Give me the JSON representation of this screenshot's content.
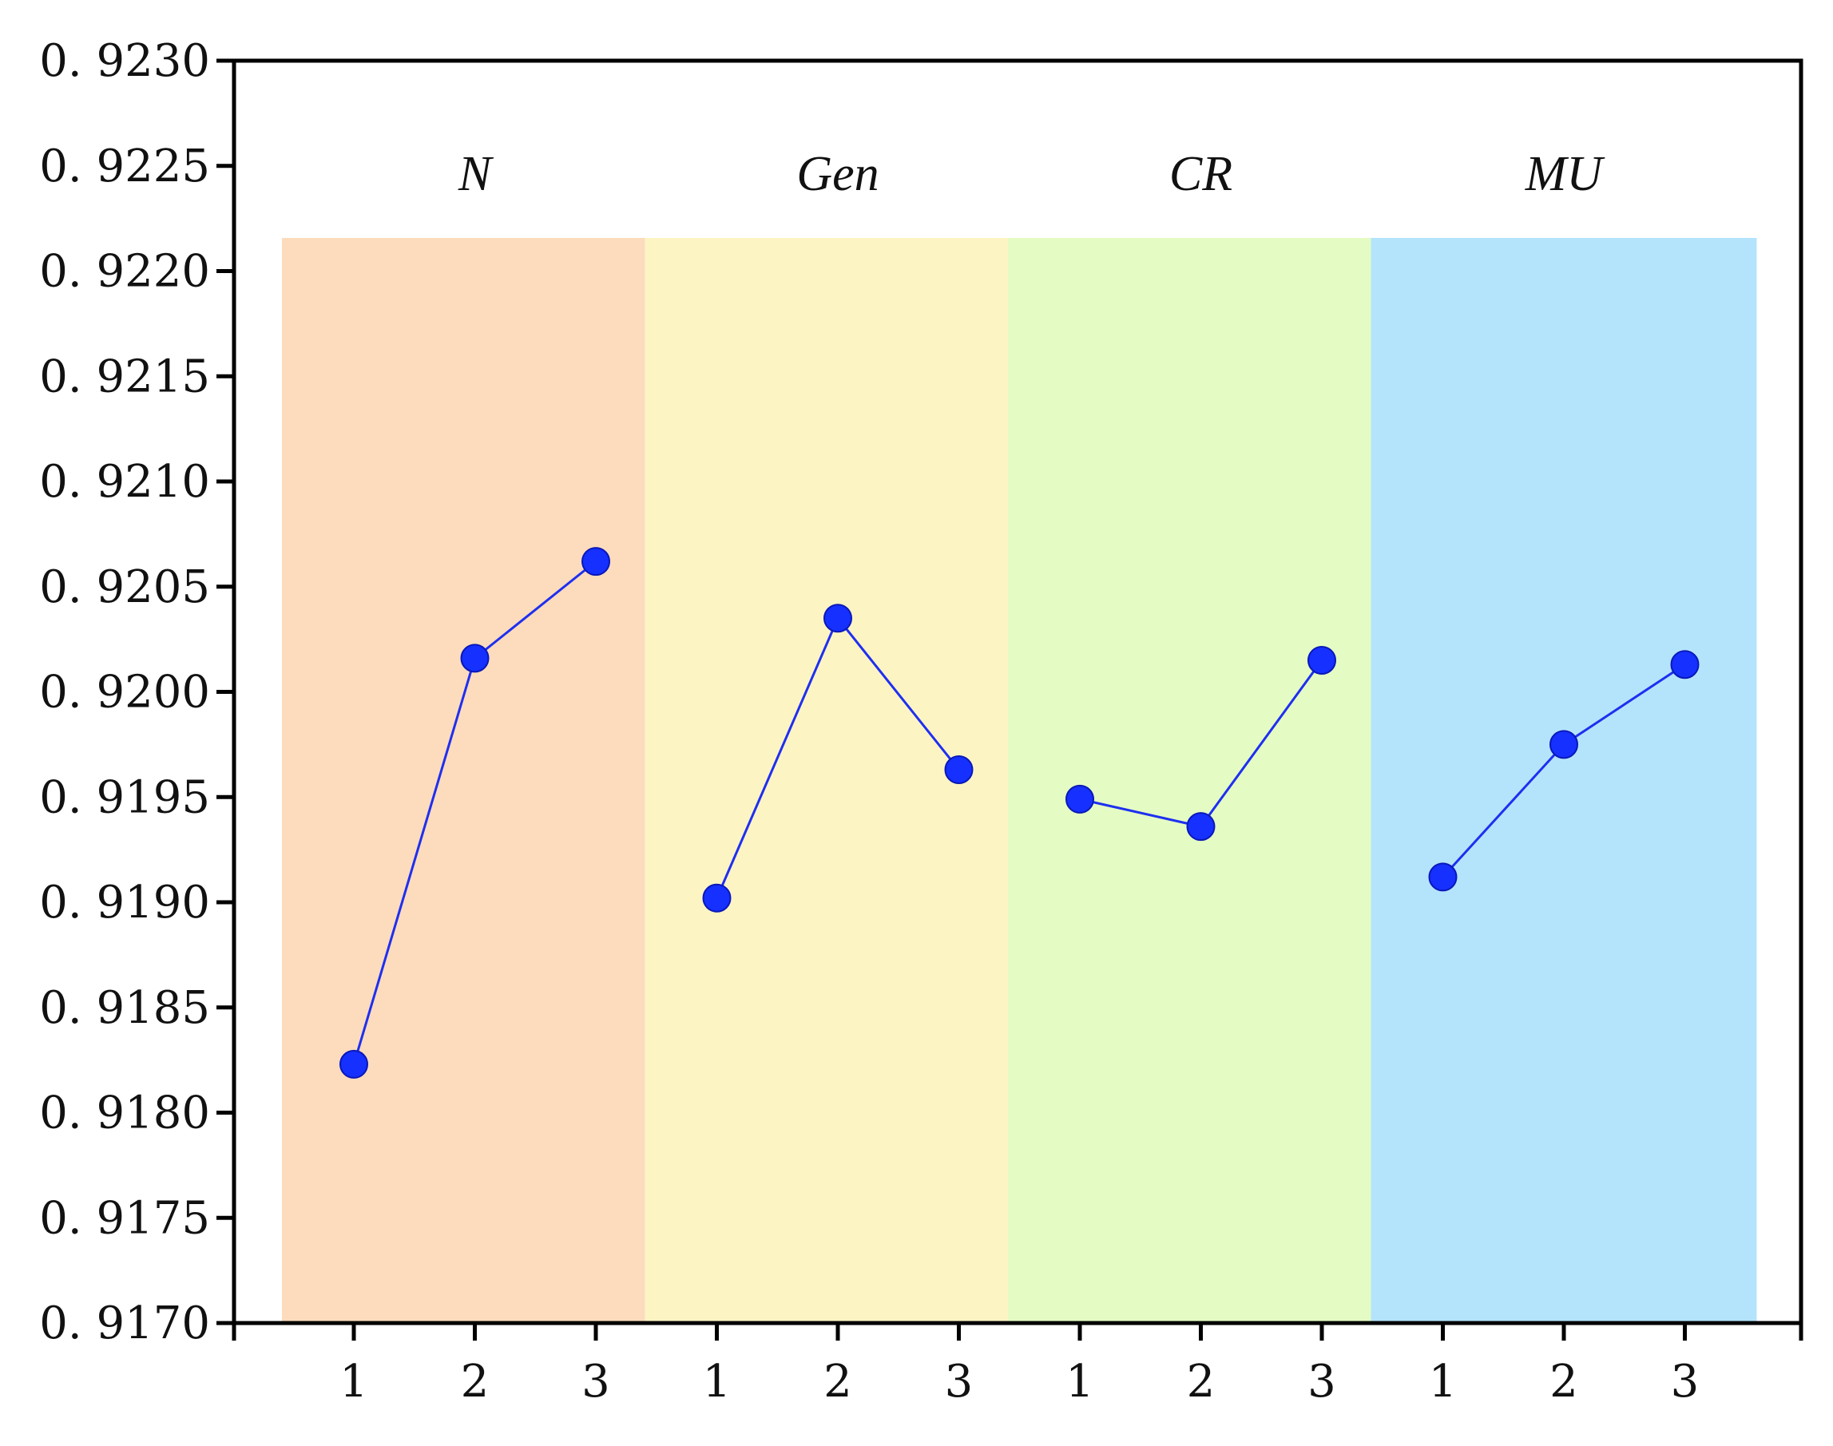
{
  "chart_data": {
    "type": "line",
    "title": "",
    "xlabel": "",
    "ylabel": "",
    "ylim": [
      0.917,
      0.923
    ],
    "y_ticks": [
      "0. 9170",
      "0. 9175",
      "0. 9180",
      "0. 9185",
      "0. 9190",
      "0. 9195",
      "0. 9200",
      "0. 9205",
      "0. 9210",
      "0. 9215",
      "0. 9220",
      "0. 9225",
      "0. 9230"
    ],
    "grid": false,
    "legend": "none",
    "groups": [
      {
        "label": "N",
        "color": "#fcdcbc",
        "x": [
          "1",
          "2",
          "3"
        ],
        "values": [
          0.91823,
          0.92016,
          0.92062
        ]
      },
      {
        "label": "Gen",
        "color": "#fdf4c4",
        "x": [
          "1",
          "2",
          "3"
        ],
        "values": [
          0.91902,
          0.92035,
          0.91963
        ]
      },
      {
        "label": "CR",
        "color": "#e4fcc4",
        "x": [
          "1",
          "2",
          "3"
        ],
        "values": [
          0.91949,
          0.91936,
          0.92015
        ]
      },
      {
        "label": "MU",
        "color": "#b4e4fc",
        "x": [
          "1",
          "2",
          "3"
        ],
        "values": [
          0.91912,
          0.91975,
          0.92013
        ]
      }
    ],
    "series_color": "#1530ff"
  }
}
